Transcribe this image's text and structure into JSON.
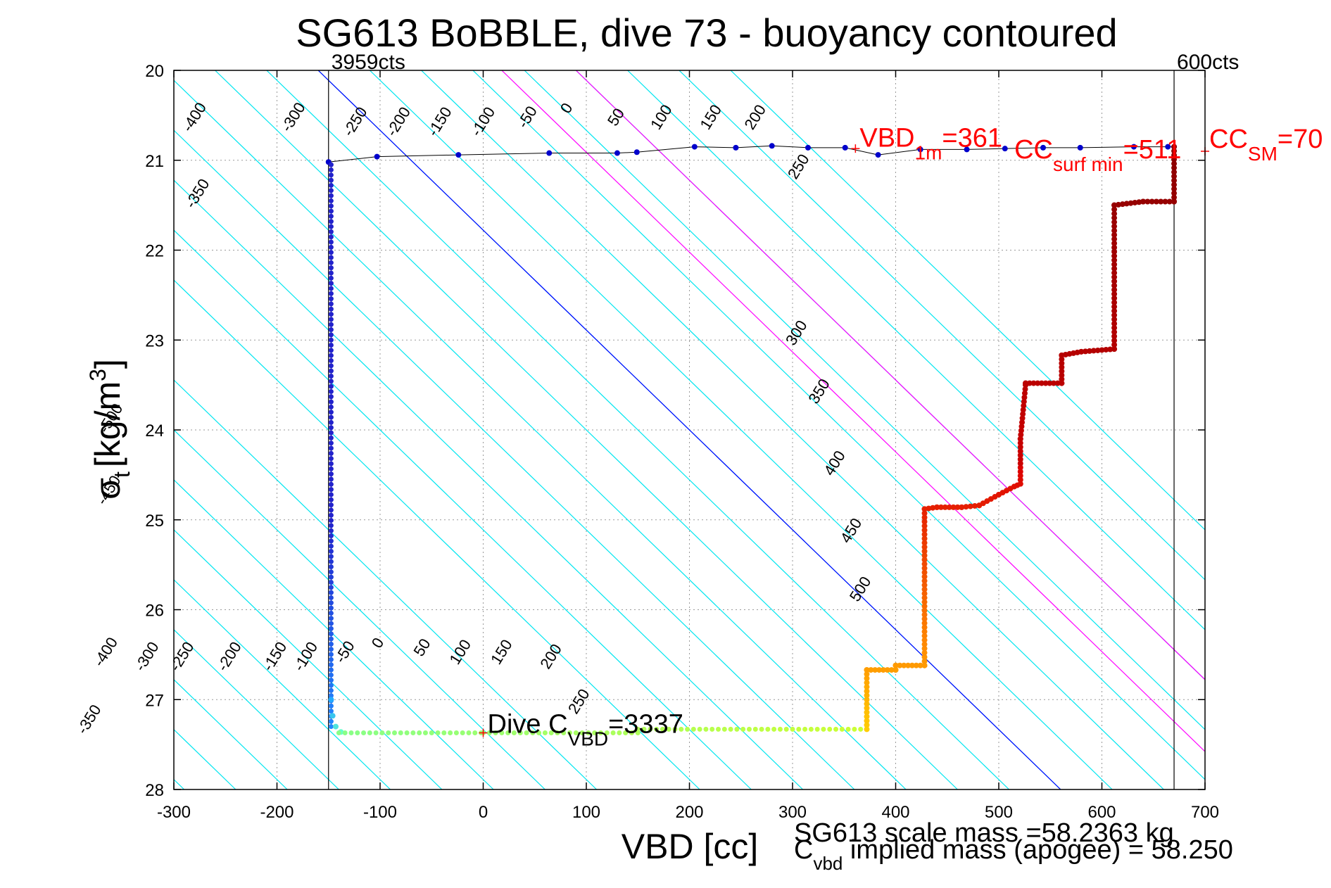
{
  "chart_data": {
    "type": "scatter",
    "title": "SG613 BoBBLE, dive 73 - buoyancy contoured",
    "xlabel": "VBD [cc]",
    "ylabel": {
      "main": "σ",
      "sub": "t",
      "unit": "[kg/m",
      "sup": "3",
      "close": "]"
    },
    "xlim": [
      -300,
      700
    ],
    "ylim": [
      20,
      28
    ],
    "y_reversed": true,
    "grid": true,
    "xticks": [
      -300,
      -200,
      -100,
      0,
      100,
      200,
      300,
      400,
      500,
      600,
      700
    ],
    "yticks": [
      20,
      21,
      22,
      23,
      24,
      25,
      26,
      27,
      28
    ],
    "vertical_lines": [
      {
        "x": -150,
        "label": "3959cts"
      },
      {
        "x": 670,
        "label": "600cts"
      }
    ],
    "buoyancy_contours": {
      "slope_x_per_sigma": 90,
      "spacing_cc": 50,
      "cyan": [
        -500,
        -450,
        -400,
        -350,
        -300,
        -250,
        -200,
        -150,
        -100,
        -50,
        50,
        100,
        150,
        200,
        250,
        300,
        350,
        400,
        450,
        500,
        550,
        600,
        650,
        700,
        750,
        800
      ],
      "blue": [
        0
      ],
      "magenta": [
        178,
        250
      ],
      "colors": {
        "cyan": "#00e6f0",
        "blue": "#0000ff",
        "magenta": "#ff00ff"
      }
    },
    "contour_labels": [
      {
        "text": "-400",
        "x": -276,
        "y": 20.55
      },
      {
        "text": "-350",
        "x": -273,
        "y": 21.4
      },
      {
        "text": "-300",
        "x": -180,
        "y": 20.55
      },
      {
        "text": "-250",
        "x": -120,
        "y": 20.6
      },
      {
        "text": "-200",
        "x": -78,
        "y": 20.6
      },
      {
        "text": "-150",
        "x": -38,
        "y": 20.6
      },
      {
        "text": "-100",
        "x": 4,
        "y": 20.6
      },
      {
        "text": "-50",
        "x": 47,
        "y": 20.55
      },
      {
        "text": "0",
        "x": 85,
        "y": 20.45
      },
      {
        "text": "50",
        "x": 133,
        "y": 20.55
      },
      {
        "text": "100",
        "x": 177,
        "y": 20.55
      },
      {
        "text": "150",
        "x": 225,
        "y": 20.55
      },
      {
        "text": "200",
        "x": 268,
        "y": 20.55
      },
      {
        "text": "250",
        "x": 310,
        "y": 21.1
      },
      {
        "text": "300",
        "x": 308,
        "y": 22.95
      },
      {
        "text": "350",
        "x": 330,
        "y": 23.6
      },
      {
        "text": "400",
        "x": 345,
        "y": 24.4
      },
      {
        "text": "450",
        "x": 361,
        "y": 25.15
      },
      {
        "text": "500",
        "x": 370,
        "y": 25.8
      },
      {
        "text": "-500",
        "x": -357,
        "y": 23.9
      },
      {
        "text": "-450",
        "x": -359,
        "y": 24.7
      },
      {
        "text": "-400",
        "x": -362,
        "y": 26.5
      },
      {
        "text": "-350",
        "x": -378,
        "y": 27.25
      },
      {
        "text": "-300",
        "x": -322,
        "y": 26.55
      },
      {
        "text": "-250",
        "x": -288,
        "y": 26.55
      },
      {
        "text": "-200",
        "x": -242,
        "y": 26.55
      },
      {
        "text": "-150",
        "x": -198,
        "y": 26.55
      },
      {
        "text": "-100",
        "x": -168,
        "y": 26.55
      },
      {
        "text": "-50",
        "x": -130,
        "y": 26.5
      },
      {
        "text": "0",
        "x": -98,
        "y": 26.4
      },
      {
        "text": "50",
        "x": -55,
        "y": 26.45
      },
      {
        "text": "100",
        "x": -18,
        "y": 26.5
      },
      {
        "text": "150",
        "x": 22,
        "y": 26.5
      },
      {
        "text": "200",
        "x": 70,
        "y": 26.55
      },
      {
        "text": "250",
        "x": 97,
        "y": 27.05
      }
    ],
    "annotations": [
      {
        "main": "VBD",
        "sub": "1m",
        "tail": "=361",
        "x": 361,
        "y": 20.85,
        "color": "#ff0000"
      },
      {
        "main": "CC",
        "sub": "surf min",
        "tail": "=511",
        "x": 511,
        "y": 20.98,
        "color": "#ff0000"
      },
      {
        "main": "CC",
        "sub": "SM",
        "tail": "=70",
        "x": 700,
        "y": 20.86,
        "color": "#ff0000"
      },
      {
        "main": "Dive C",
        "sub": "VBD",
        "tail": "=3337",
        "x": 0,
        "y": 27.37,
        "color": "#000000"
      }
    ],
    "red_markers": [
      {
        "x": 361,
        "y": 20.87
      },
      {
        "x": 700,
        "y": 20.9
      },
      {
        "x": 0,
        "y": 27.37
      }
    ],
    "series": [
      {
        "name": "dive",
        "description_color": "blue",
        "points": [
          [
            -150,
            21.02
          ],
          [
            -103,
            20.96
          ],
          [
            -24,
            20.94
          ],
          [
            64,
            20.92
          ],
          [
            130,
            20.92
          ],
          [
            149,
            20.91
          ],
          [
            205,
            20.85
          ],
          [
            245,
            20.86
          ],
          [
            280,
            20.84
          ],
          [
            315,
            20.86
          ],
          [
            351,
            20.86
          ],
          [
            383,
            20.94
          ],
          [
            424,
            20.88
          ],
          [
            469,
            20.88
          ],
          [
            506,
            20.87
          ],
          [
            543,
            20.86
          ],
          [
            579,
            20.86
          ],
          [
            631,
            20.85
          ],
          [
            664,
            20.85
          ],
          [
            670,
            20.85
          ]
        ],
        "vertical": {
          "x": -147.5,
          "y_start": 21.05,
          "y_end": 27.3,
          "n": 110
        },
        "bottom_curve": [
          [
            -147.5,
            27.0
          ],
          [
            -146,
            27.18
          ],
          [
            -143,
            27.3
          ],
          [
            -138,
            27.36
          ]
        ],
        "color": "#0000cc"
      },
      {
        "name": "bottom",
        "horizontal": [
          {
            "x0": -140,
            "x1": 0,
            "y": 27.37
          },
          {
            "x0": 0,
            "x1": 150,
            "y": 27.37
          },
          {
            "x0": 150,
            "x1": 370,
            "y": 27.33
          }
        ],
        "spacing_cc": 6,
        "color_start": "#88ff88",
        "color_end": "#ccff33"
      },
      {
        "name": "climb",
        "steps": [
          [
            372,
            27.33
          ],
          [
            372,
            26.67
          ],
          [
            400,
            26.67
          ],
          [
            400,
            26.62
          ],
          [
            428,
            26.62
          ],
          [
            428,
            24.88
          ],
          [
            440,
            24.86
          ],
          [
            464,
            24.86
          ],
          [
            481,
            24.84
          ],
          [
            500,
            24.72
          ],
          [
            515,
            24.63
          ],
          [
            521,
            24.6
          ],
          [
            521,
            24.1
          ],
          [
            526,
            23.5
          ],
          [
            526,
            23.48
          ],
          [
            561,
            23.48
          ],
          [
            561,
            23.17
          ],
          [
            580,
            23.13
          ],
          [
            612,
            23.1
          ],
          [
            612,
            21.5
          ],
          [
            640,
            21.46
          ],
          [
            670,
            21.46
          ],
          [
            670,
            20.85
          ]
        ],
        "color_start": "#ff8800",
        "color_end": "#8b0000"
      }
    ],
    "footer": {
      "scale_mass": "SG613 scale mass =58.2363 kg",
      "implied_main": "C",
      "implied_sub": "vbd",
      "implied_tail": " implied mass (apogee) = 58.250"
    }
  }
}
